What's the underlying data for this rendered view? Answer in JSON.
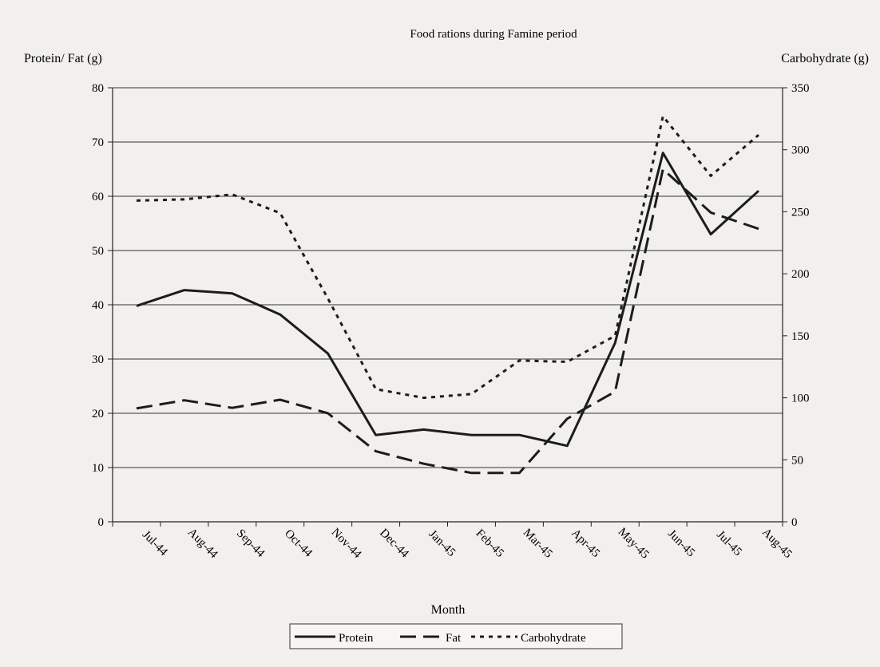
{
  "chart_data": {
    "type": "line",
    "title": "Food rations during Famine period",
    "xlabel": "Month",
    "ylabel_left": "Protein/ Fat (g)",
    "ylabel_right": "Carbohydrate (g)",
    "categories": [
      "Jul-44",
      "Aug-44",
      "Sep-44",
      "Oct-44",
      "Nov-44",
      "Dec-44",
      "Jan-45",
      "Feb-45",
      "Mar-45",
      "Apr-45",
      "May-45",
      "Jun-45",
      "Jul-45",
      "Aug-45"
    ],
    "ylim_left": [
      0,
      80
    ],
    "yticks_left": [
      0,
      10,
      20,
      30,
      40,
      50,
      60,
      70,
      80
    ],
    "ylim_right": [
      0,
      350
    ],
    "yticks_right": [
      0,
      50,
      100,
      150,
      200,
      250,
      300,
      350
    ],
    "grid": true,
    "legend_position": "bottom",
    "series": [
      {
        "name": "Protein",
        "axis": "left",
        "style": "solid",
        "values": [
          39.8,
          42.7,
          42.1,
          38.2,
          31.0,
          16.0,
          17.0,
          16.0,
          16.0,
          14.0,
          33.0,
          68.0,
          53.0,
          61.0
        ]
      },
      {
        "name": "Fat",
        "axis": "left",
        "style": "dashed",
        "values": [
          20.9,
          22.4,
          21.0,
          22.5,
          20.0,
          13.0,
          10.7,
          9.0,
          9.0,
          19.0,
          24.0,
          65.0,
          57.0,
          54.0
        ]
      },
      {
        "name": "Carbohydrate",
        "axis": "right",
        "style": "dotted",
        "values": [
          259,
          260,
          264,
          249,
          180,
          107,
          100,
          103,
          130,
          129,
          150,
          327,
          279,
          312
        ]
      }
    ],
    "colors": {
      "line": "#1c1c1c",
      "grid": "#333333",
      "background": "#f1f0ed"
    }
  }
}
